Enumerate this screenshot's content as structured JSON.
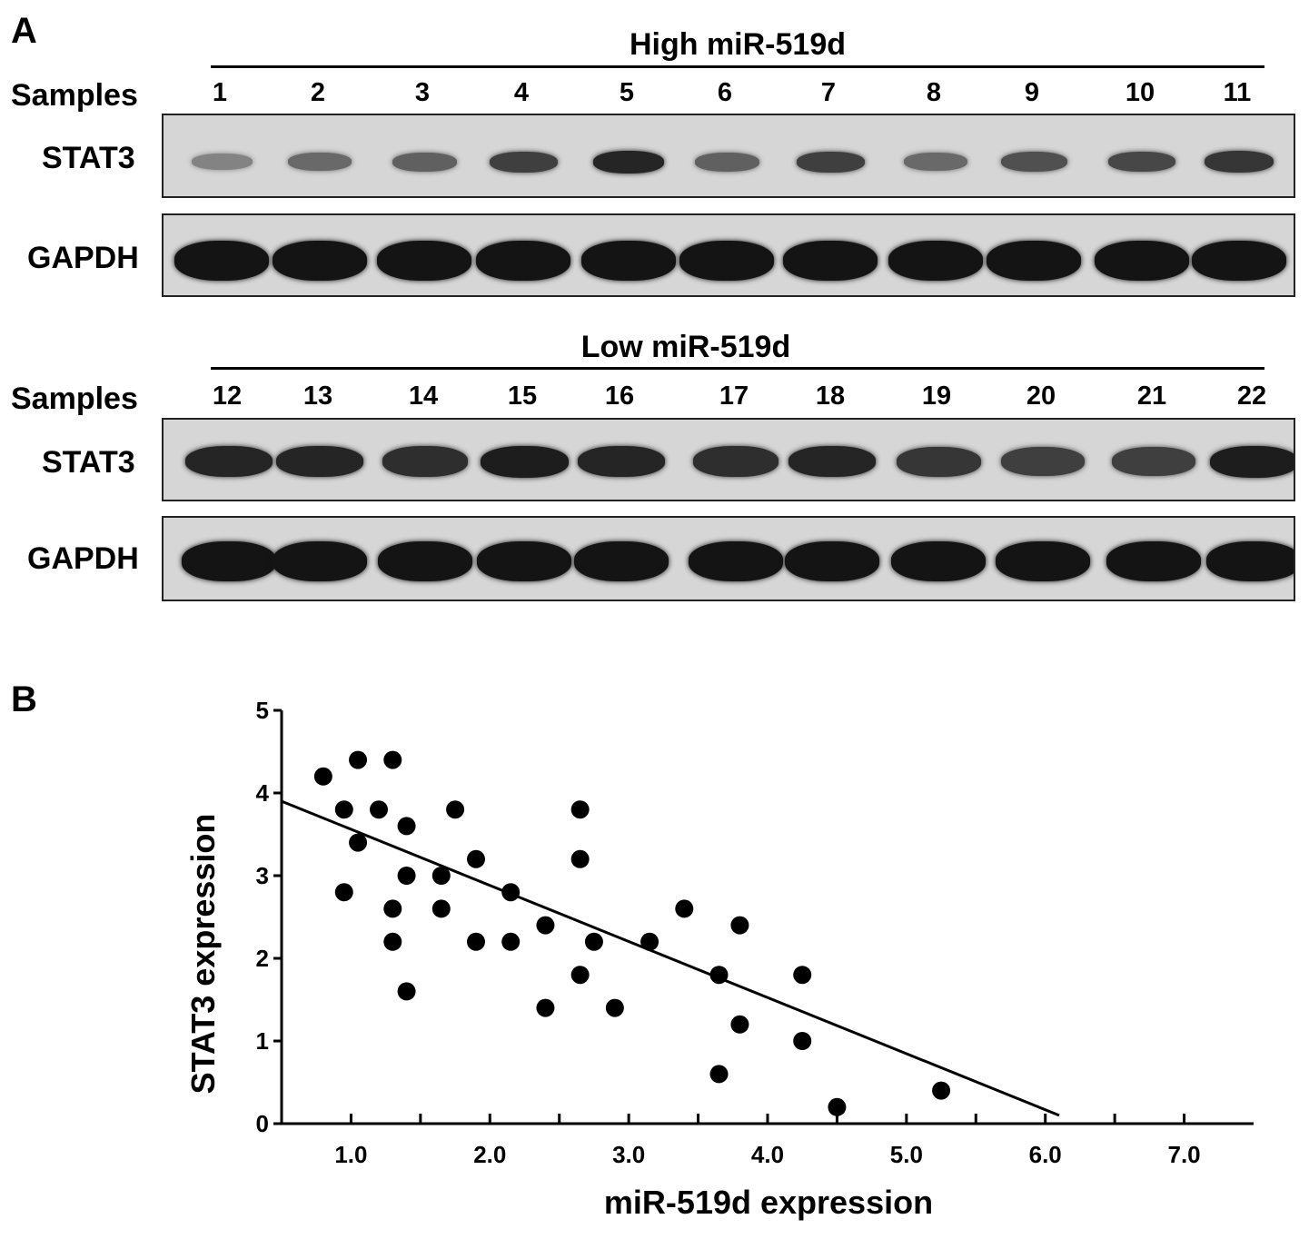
{
  "panel_a_label": "A",
  "panel_b_label": "B",
  "blot_groups": [
    {
      "title": "High miR-519d",
      "samples_label": "Samples",
      "samples": [
        "1",
        "2",
        "3",
        "4",
        "5",
        "6",
        "7",
        "8",
        "9",
        "10",
        "11"
      ],
      "rows": [
        {
          "label": "STAT3",
          "band_intensity": [
            0.35,
            0.5,
            0.55,
            0.75,
            0.9,
            0.55,
            0.75,
            0.5,
            0.65,
            0.7,
            0.8
          ]
        },
        {
          "label": "GAPDH",
          "band_intensity": [
            1,
            1,
            1,
            1,
            1,
            1,
            1,
            1,
            1,
            1,
            1
          ]
        }
      ]
    },
    {
      "title": "Low miR-519d",
      "samples_label": "Samples",
      "samples": [
        "12",
        "13",
        "14",
        "15",
        "16",
        "17",
        "18",
        "19",
        "20",
        "21",
        "22"
      ],
      "rows": [
        {
          "label": "STAT3",
          "band_intensity": [
            0.9,
            0.9,
            0.85,
            0.95,
            0.9,
            0.85,
            0.9,
            0.8,
            0.75,
            0.75,
            0.95
          ]
        },
        {
          "label": "GAPDH",
          "band_intensity": [
            1,
            1,
            1,
            1,
            1,
            1,
            1,
            1,
            1,
            1,
            1
          ]
        }
      ]
    }
  ],
  "chart_data": {
    "type": "scatter",
    "xlabel": "miR-519d expression",
    "ylabel": "STAT3 expression",
    "xlim": [
      0.5,
      7.5
    ],
    "ylim": [
      0,
      5
    ],
    "x_ticks": [
      "1.0",
      "2.0",
      "3.0",
      "4.0",
      "5.0",
      "6.0",
      "7.0"
    ],
    "y_ticks": [
      "0",
      "1",
      "2",
      "3",
      "4",
      "5"
    ],
    "grid": false,
    "points": [
      {
        "x": 0.8,
        "y": 4.2
      },
      {
        "x": 0.95,
        "y": 3.8
      },
      {
        "x": 0.95,
        "y": 2.8
      },
      {
        "x": 1.05,
        "y": 4.4
      },
      {
        "x": 1.05,
        "y": 3.4
      },
      {
        "x": 1.2,
        "y": 3.8
      },
      {
        "x": 1.3,
        "y": 4.4
      },
      {
        "x": 1.3,
        "y": 2.6
      },
      {
        "x": 1.3,
        "y": 2.2
      },
      {
        "x": 1.4,
        "y": 3.6
      },
      {
        "x": 1.4,
        "y": 3.0
      },
      {
        "x": 1.4,
        "y": 1.6
      },
      {
        "x": 1.65,
        "y": 3.0
      },
      {
        "x": 1.65,
        "y": 2.6
      },
      {
        "x": 1.75,
        "y": 3.8
      },
      {
        "x": 1.9,
        "y": 3.2
      },
      {
        "x": 1.9,
        "y": 2.2
      },
      {
        "x": 2.15,
        "y": 2.8
      },
      {
        "x": 2.15,
        "y": 2.2
      },
      {
        "x": 2.4,
        "y": 2.4
      },
      {
        "x": 2.4,
        "y": 1.4
      },
      {
        "x": 2.65,
        "y": 3.8
      },
      {
        "x": 2.65,
        "y": 3.2
      },
      {
        "x": 2.65,
        "y": 1.8
      },
      {
        "x": 2.75,
        "y": 2.2
      },
      {
        "x": 2.9,
        "y": 1.4
      },
      {
        "x": 3.15,
        "y": 2.2
      },
      {
        "x": 3.4,
        "y": 2.6
      },
      {
        "x": 3.65,
        "y": 1.8
      },
      {
        "x": 3.65,
        "y": 0.6
      },
      {
        "x": 3.8,
        "y": 2.4
      },
      {
        "x": 3.8,
        "y": 1.2
      },
      {
        "x": 4.25,
        "y": 1.8
      },
      {
        "x": 4.25,
        "y": 1.0
      },
      {
        "x": 4.5,
        "y": 0.2
      },
      {
        "x": 5.25,
        "y": 0.4
      }
    ],
    "regression_line": {
      "x": [
        0.5,
        6.1
      ],
      "y": [
        3.9,
        0.1
      ]
    }
  }
}
